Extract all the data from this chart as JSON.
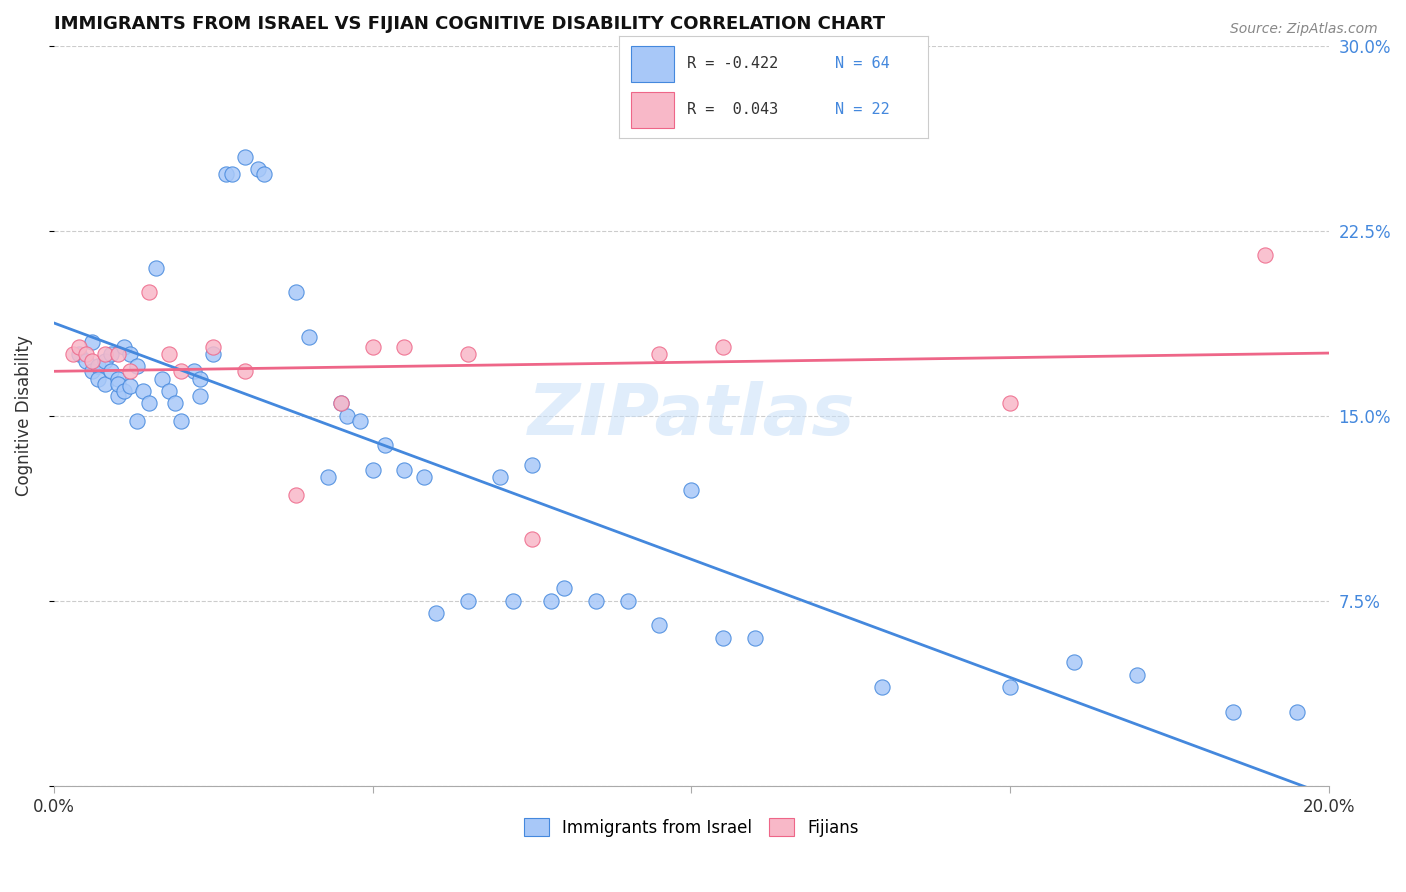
{
  "title": "IMMIGRANTS FROM ISRAEL VS FIJIAN COGNITIVE DISABILITY CORRELATION CHART",
  "source": "Source: ZipAtlas.com",
  "xlabel_bottom": "",
  "ylabel": "Cognitive Disability",
  "xlim": [
    0.0,
    0.2
  ],
  "ylim": [
    0.0,
    0.3
  ],
  "xticks": [
    0.0,
    0.05,
    0.1,
    0.15,
    0.2
  ],
  "xticklabels": [
    "0.0%",
    "",
    "",
    "",
    "20.0%"
  ],
  "yticks_right": [
    0.0,
    0.075,
    0.15,
    0.225,
    0.3
  ],
  "ytick_right_labels": [
    "",
    "7.5%",
    "15.0%",
    "22.5%",
    "30.0%"
  ],
  "legend_r1": "R = -0.422",
  "legend_n1": "N = 64",
  "legend_r2": "R =  0.043",
  "legend_n2": "N = 22",
  "color_israel": "#a8c8f8",
  "color_fijian": "#f8b8c8",
  "color_line_israel": "#4488dd",
  "color_line_fijian": "#ee6688",
  "israel_x": [
    0.004,
    0.005,
    0.006,
    0.006,
    0.007,
    0.007,
    0.008,
    0.008,
    0.009,
    0.009,
    0.01,
    0.01,
    0.01,
    0.011,
    0.011,
    0.012,
    0.012,
    0.013,
    0.013,
    0.014,
    0.015,
    0.016,
    0.017,
    0.018,
    0.019,
    0.02,
    0.022,
    0.023,
    0.023,
    0.025,
    0.027,
    0.028,
    0.03,
    0.032,
    0.033,
    0.038,
    0.04,
    0.043,
    0.045,
    0.046,
    0.048,
    0.05,
    0.052,
    0.055,
    0.058,
    0.06,
    0.065,
    0.07,
    0.072,
    0.075,
    0.078,
    0.08,
    0.085,
    0.09,
    0.095,
    0.1,
    0.105,
    0.11,
    0.13,
    0.15,
    0.16,
    0.17,
    0.185,
    0.195
  ],
  "israel_y": [
    0.175,
    0.172,
    0.18,
    0.168,
    0.17,
    0.165,
    0.172,
    0.163,
    0.175,
    0.168,
    0.165,
    0.158,
    0.163,
    0.178,
    0.16,
    0.175,
    0.162,
    0.17,
    0.148,
    0.16,
    0.155,
    0.21,
    0.165,
    0.16,
    0.155,
    0.148,
    0.168,
    0.165,
    0.158,
    0.175,
    0.248,
    0.248,
    0.255,
    0.25,
    0.248,
    0.2,
    0.182,
    0.125,
    0.155,
    0.15,
    0.148,
    0.128,
    0.138,
    0.128,
    0.125,
    0.07,
    0.075,
    0.125,
    0.075,
    0.13,
    0.075,
    0.08,
    0.075,
    0.075,
    0.065,
    0.12,
    0.06,
    0.06,
    0.04,
    0.04,
    0.05,
    0.045,
    0.03,
    0.03
  ],
  "fijian_x": [
    0.003,
    0.004,
    0.005,
    0.006,
    0.008,
    0.01,
    0.012,
    0.015,
    0.018,
    0.02,
    0.025,
    0.03,
    0.038,
    0.045,
    0.05,
    0.055,
    0.065,
    0.075,
    0.095,
    0.105,
    0.15,
    0.19
  ],
  "fijian_y": [
    0.175,
    0.178,
    0.175,
    0.172,
    0.175,
    0.175,
    0.168,
    0.2,
    0.175,
    0.168,
    0.178,
    0.168,
    0.118,
    0.155,
    0.178,
    0.178,
    0.175,
    0.1,
    0.175,
    0.178,
    0.155,
    0.215
  ],
  "watermark": "ZIPatlas",
  "background_color": "#ffffff",
  "grid_color": "#cccccc"
}
